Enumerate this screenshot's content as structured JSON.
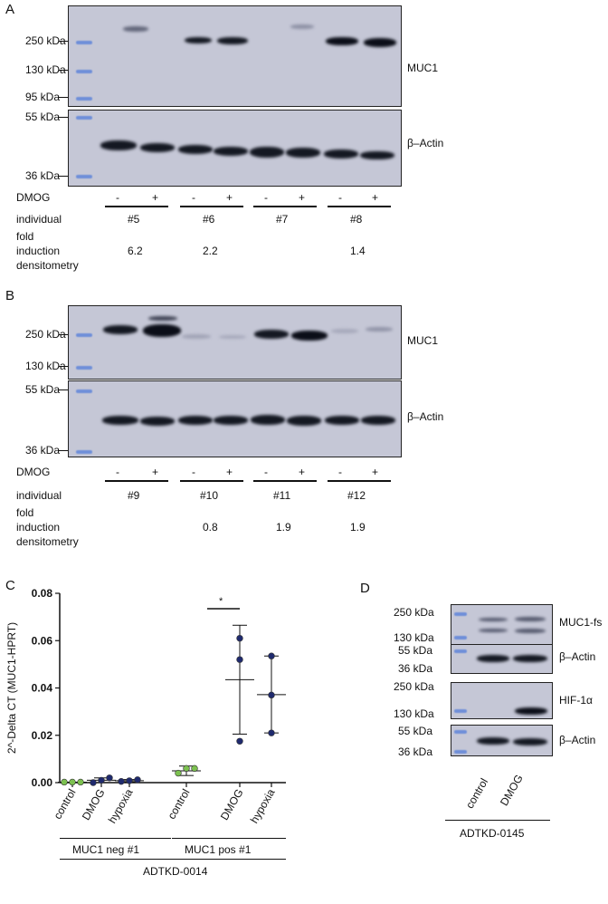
{
  "panelA": {
    "letter": "A",
    "mw_top": [
      "250 kDa",
      "130 kDa",
      "95 kDa"
    ],
    "mw_bottom": [
      "55 kDa",
      "36 kDa"
    ],
    "label_top": "MUC1",
    "label_bottom": "β–Actin",
    "dmog_label": "DMOG",
    "signs": [
      "-",
      "+",
      "-",
      "+",
      "-",
      "+",
      "-",
      "+"
    ],
    "individual_label": "individual",
    "individuals": [
      "#5",
      "#6",
      "#7",
      "#8"
    ],
    "fold_label_lines": [
      "fold",
      "induction",
      "densitometry"
    ],
    "fold_values": [
      "6.2",
      "2.2",
      "",
      "1.4"
    ]
  },
  "panelB": {
    "letter": "B",
    "mw_top": [
      "250 kDa",
      "130 kDa"
    ],
    "mw_bottom": [
      "55 kDa",
      "36 kDa"
    ],
    "label_top": "MUC1",
    "label_bottom": "β–Actin",
    "dmog_label": "DMOG",
    "signs": [
      "-",
      "+",
      "-",
      "+",
      "-",
      "+",
      "-",
      "+"
    ],
    "individual_label": "individual",
    "individuals": [
      "#9",
      "#10",
      "#11",
      "#12"
    ],
    "fold_label_lines": [
      "fold",
      "induction",
      "densitometry"
    ],
    "fold_values": [
      "",
      "0.8",
      "1.9",
      "1.9"
    ]
  },
  "panelC": {
    "letter": "C",
    "significance": "*",
    "group_labels": [
      "MUC1 neg #1",
      "MUC1 pos #1"
    ],
    "cell_line": "ADTKD-0014"
  },
  "panelD": {
    "letter": "D",
    "mw_1": [
      "250 kDa",
      "130 kDa"
    ],
    "mw_2": [
      "55 kDa",
      "36 kDa"
    ],
    "mw_3": [
      "250 kDa",
      "130 kDa"
    ],
    "mw_4": [
      "55 kDa",
      "36 kDa"
    ],
    "labels": [
      "MUC1-fs",
      "β–Actin",
      "HIF-1α",
      "β–Actin"
    ],
    "lanes": [
      "control",
      "DMOG"
    ],
    "cell_line": "ADTKD-0145"
  },
  "chart_data": {
    "type": "scatter",
    "title": "",
    "xlabel": "",
    "ylabel": "2^-Delta CT (MUC1-HPRT)",
    "categories": [
      "control",
      "DMOG",
      "hypoxia",
      "control",
      "DMOG",
      "hypoxia"
    ],
    "ylim": [
      0,
      0.08
    ],
    "yticks": [
      "0.00",
      "0.02",
      "0.04",
      "0.06",
      "0.08"
    ],
    "series": [
      {
        "color": "#7cc150",
        "points": [
          0.0002,
          0.0002,
          0.0002
        ]
      },
      {
        "color": "#1f2a6e",
        "points": [
          0.0,
          0.001,
          0.002
        ]
      },
      {
        "color": "#1f2a6e",
        "points": [
          0.0005,
          0.0008,
          0.0012
        ]
      },
      {
        "color": "#7cc150",
        "points": [
          0.004,
          0.006,
          0.006
        ]
      },
      {
        "color": "#1f2a6e",
        "points": [
          0.0175,
          0.052,
          0.061
        ]
      },
      {
        "color": "#1f2a6e",
        "points": [
          0.021,
          0.037,
          0.0535
        ]
      }
    ],
    "means": [
      0.0002,
      0.001,
      0.0008,
      0.005,
      0.0435,
      0.0372
    ],
    "errors": [
      [
        0.0002,
        0.0002
      ],
      [
        0.0,
        0.002
      ],
      [
        0.0003,
        0.0013
      ],
      [
        0.003,
        0.007
      ],
      [
        0.0205,
        0.0665
      ],
      [
        0.021,
        0.0535
      ]
    ],
    "grid": false,
    "legend": "none"
  },
  "colors": {
    "band": "#141822",
    "ladder": "#6f8fd9",
    "blot_bg": "#c5c7d6",
    "green": "#7cc150",
    "navy": "#1f2a6e"
  }
}
